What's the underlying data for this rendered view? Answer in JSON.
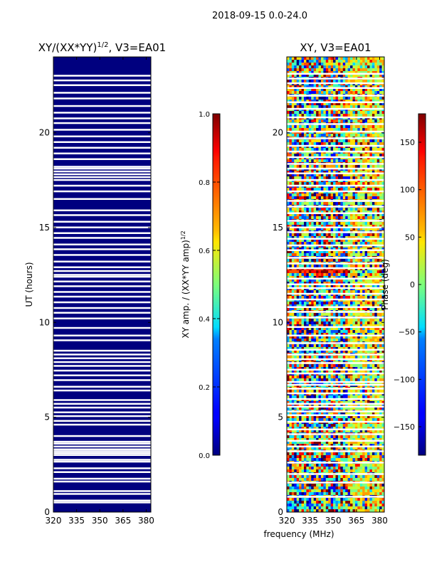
{
  "figure": {
    "suptitle": "2018-09-15 0.0-24.0",
    "shared_xlabel": "frequency (MHz)"
  },
  "chart_data": [
    {
      "type": "heatmap",
      "title_main": "XY/(XX*YY)",
      "title_sup": "1/2",
      "title_tail": ", V3=EA01",
      "ylabel": "UT (hours)",
      "xlim": [
        320,
        383
      ],
      "ylim": [
        0,
        24
      ],
      "xticks": [
        320,
        335,
        350,
        365,
        380
      ],
      "yticks": [
        0,
        5,
        10,
        15,
        20
      ],
      "fill_color": "#00007f",
      "flag_color": "#ffffff",
      "gaps_hours": [
        0.5,
        0.6,
        0.95,
        1.1,
        1.6,
        1.75,
        2.1,
        2.3,
        2.65,
        2.75,
        3.0,
        3.1,
        3.2,
        3.3,
        3.45,
        3.6,
        3.7,
        4.0,
        4.6,
        4.8,
        5.05,
        5.25,
        5.5,
        5.7,
        5.9,
        6.4,
        6.6,
        6.95,
        7.2,
        7.45,
        7.7,
        7.9,
        8.1,
        8.3,
        8.5,
        9.05,
        9.3,
        9.7,
        10.2,
        10.5,
        10.75,
        11.05,
        11.35,
        11.6,
        11.9,
        12.15,
        12.4,
        12.5,
        12.7,
        12.9,
        13.2,
        13.55,
        13.85,
        14.1,
        14.45,
        14.7,
        15.0,
        15.3,
        15.65,
        15.9,
        16.5,
        16.9,
        17.2,
        17.5,
        17.65,
        17.8,
        17.95,
        18.1,
        18.2,
        18.6,
        18.9,
        19.2,
        19.5,
        19.8,
        20.15,
        20.5,
        20.75,
        21.05,
        21.4,
        21.8,
        22.1,
        22.5,
        22.75,
        23.0
      ]
    },
    {
      "type": "colorbar",
      "label_main": "XY amp. / (XX*YY amp)",
      "label_sup": "1/2",
      "range": [
        0.0,
        1.0
      ],
      "ticks": [
        "0.0",
        "0.2",
        "0.4",
        "0.6",
        "0.8",
        "1.0"
      ]
    },
    {
      "type": "heatmap",
      "title": "XY, V3=EA01",
      "xlim": [
        320,
        383
      ],
      "ylim": [
        0,
        24
      ],
      "xticks": [
        320,
        335,
        350,
        365,
        380
      ],
      "yticks": [
        0,
        5,
        10,
        15,
        20
      ],
      "value_range_deg": [
        -180,
        180
      ],
      "gaps_hours": [
        0.8,
        1.55,
        2.0,
        2.6,
        3.2,
        3.45,
        3.75,
        4.1,
        4.35,
        4.75,
        5.1,
        5.3,
        5.55,
        5.7,
        5.95,
        6.25,
        6.5,
        6.7,
        6.85,
        7.3,
        7.5,
        7.85,
        8.05,
        8.3,
        8.55,
        8.9,
        9.3,
        9.75,
        10.25,
        10.55,
        10.8,
        11.2,
        11.5,
        11.8,
        12.0,
        12.3,
        12.85,
        13.1,
        13.4,
        13.8,
        14.05,
        14.4,
        14.75,
        15.0,
        15.35,
        15.75,
        16.1,
        16.4,
        16.9,
        17.2,
        17.5,
        17.85,
        18.1,
        18.35,
        18.7,
        19.0,
        19.3,
        19.7,
        20.05,
        20.45,
        20.8,
        21.25,
        21.6,
        21.95,
        22.35,
        22.6,
        22.85,
        23.1
      ]
    },
    {
      "type": "colorbar",
      "label": "Phase (deg)",
      "range": [
        -180,
        180
      ],
      "ticks": [
        "150",
        "100",
        "50",
        "0",
        "−50",
        "−100",
        "−150"
      ]
    }
  ]
}
